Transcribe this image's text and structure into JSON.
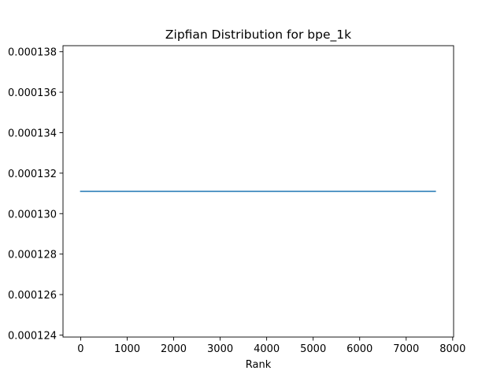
{
  "chart_data": {
    "type": "line",
    "title": "Zipfian Distribution for bpe_1k",
    "xlabel": "Rank",
    "ylabel": "",
    "xlim": [
      -380,
      8020
    ],
    "ylim": [
      0.0001239,
      0.0001383
    ],
    "xticks": [
      0,
      1000,
      2000,
      3000,
      4000,
      5000,
      6000,
      7000,
      8000
    ],
    "xtick_labels": [
      "0",
      "1000",
      "2000",
      "3000",
      "4000",
      "5000",
      "6000",
      "7000",
      "8000"
    ],
    "yticks": [
      0.000124,
      0.000126,
      0.000128,
      0.00013,
      0.000132,
      0.000134,
      0.000136,
      0.000138
    ],
    "ytick_labels": [
      "0.000124",
      "0.000126",
      "0.000128",
      "0.000130",
      "0.000132",
      "0.000134",
      "0.000136",
      "0.000138"
    ],
    "grid": false,
    "series": [
      {
        "color": "#1f77b4",
        "x": [
          0,
          7627
        ],
        "y": [
          0.0001311,
          0.0001311
        ]
      }
    ]
  }
}
